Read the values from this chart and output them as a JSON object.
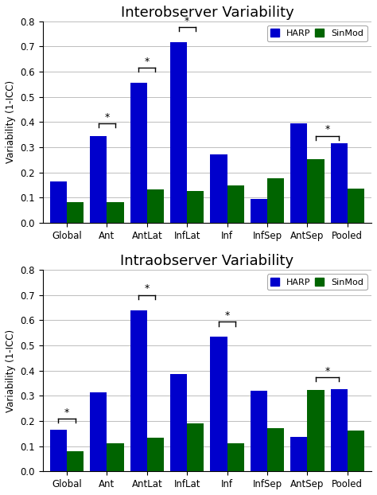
{
  "categories": [
    "Global",
    "Ant",
    "AntLat",
    "InfLat",
    "Inf",
    "InfSep",
    "AntSep",
    "Pooled"
  ],
  "interobserver": {
    "title": "Interobserver Variability",
    "harp": [
      0.163,
      0.345,
      0.556,
      0.716,
      0.27,
      0.094,
      0.393,
      0.315
    ],
    "sinmod": [
      0.082,
      0.082,
      0.132,
      0.125,
      0.148,
      0.177,
      0.253,
      0.137
    ],
    "sig_pairs": [
      [
        1,
        1,
        0.395,
        "*"
      ],
      [
        2,
        2,
        0.615,
        "*"
      ],
      [
        3,
        3,
        0.775,
        "*"
      ],
      [
        6,
        7,
        0.345,
        "*"
      ]
    ]
  },
  "intraobserver": {
    "title": "Intraobserver Variability",
    "harp": [
      0.165,
      0.312,
      0.638,
      0.385,
      0.535,
      0.32,
      0.138,
      0.325
    ],
    "sinmod": [
      0.08,
      0.11,
      0.135,
      0.192,
      0.11,
      0.172,
      0.323,
      0.163
    ],
    "sig_pairs": [
      [
        0,
        0,
        0.21,
        "*"
      ],
      [
        2,
        2,
        0.7,
        "*"
      ],
      [
        4,
        4,
        0.593,
        "*"
      ],
      [
        6,
        7,
        0.373,
        "*"
      ]
    ]
  },
  "harp_color": "#0000CC",
  "sinmod_color": "#006400",
  "ylabel": "Variability (1-ICC)",
  "ylim": [
    0,
    0.8
  ],
  "yticks": [
    0.0,
    0.1,
    0.2,
    0.3,
    0.4,
    0.5,
    0.6,
    0.7,
    0.8
  ],
  "bar_width": 0.42,
  "legend_labels": [
    "HARP",
    "SinMod"
  ]
}
